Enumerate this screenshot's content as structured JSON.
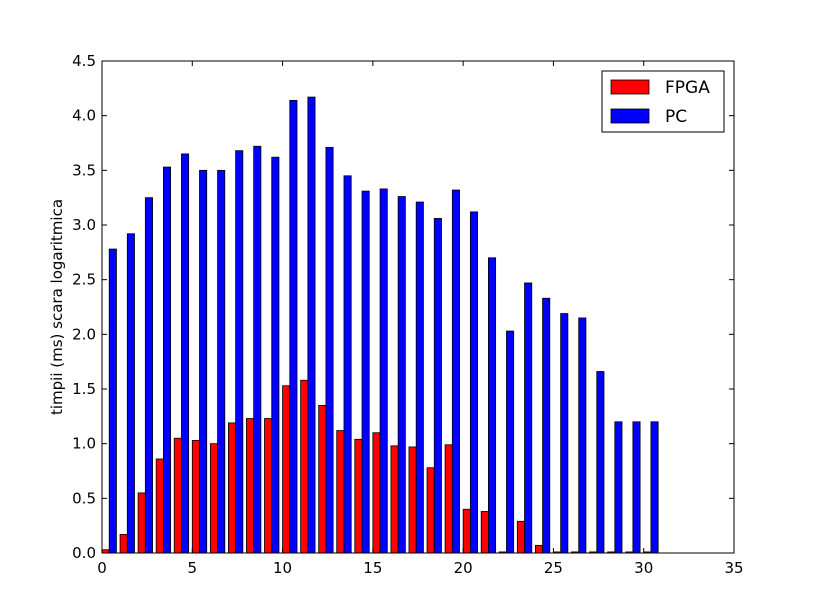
{
  "chart_data": {
    "type": "bar",
    "title": "",
    "xlabel": "",
    "ylabel": "timpii (ms) scara logaritmica",
    "xlim": [
      0,
      35
    ],
    "ylim": [
      0,
      4.5
    ],
    "xticks": [
      "0",
      "5",
      "10",
      "15",
      "20",
      "25",
      "30",
      "35"
    ],
    "yticks": [
      "0.0",
      "0.5",
      "1.0",
      "1.5",
      "2.0",
      "2.5",
      "3.0",
      "3.5",
      "4.0",
      "4.5"
    ],
    "grid": false,
    "legend_position": "top-right",
    "x": [
      0,
      1,
      2,
      3,
      4,
      5,
      6,
      7,
      8,
      9,
      10,
      11,
      12,
      13,
      14,
      15,
      16,
      17,
      18,
      19,
      20,
      21,
      22,
      23,
      24,
      25,
      26,
      27,
      28,
      29,
      30
    ],
    "series": [
      {
        "name": "FPGA",
        "color": "#ff0000",
        "values": [
          0.03,
          0.17,
          0.55,
          0.86,
          1.05,
          1.03,
          1.0,
          1.19,
          1.23,
          1.23,
          1.53,
          1.58,
          1.35,
          1.12,
          1.04,
          1.1,
          0.98,
          0.97,
          0.78,
          0.99,
          0.4,
          0.38,
          0.01,
          0.29,
          0.07,
          0.01,
          0.01,
          0.01,
          0.01,
          0.01,
          0.01
        ]
      },
      {
        "name": "PC",
        "color": "#0000ff",
        "values": [
          2.78,
          2.92,
          3.25,
          3.53,
          3.65,
          3.5,
          3.5,
          3.68,
          3.72,
          3.62,
          4.14,
          4.17,
          3.71,
          3.45,
          3.31,
          3.33,
          3.26,
          3.21,
          3.06,
          3.32,
          3.12,
          2.7,
          2.03,
          2.47,
          2.33,
          2.19,
          2.15,
          1.66,
          1.2,
          1.2,
          1.2
        ]
      }
    ]
  }
}
